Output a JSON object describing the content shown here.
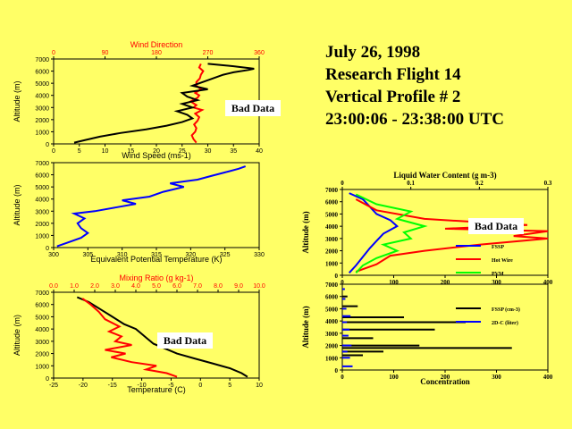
{
  "info": {
    "date": "July 26, 1998",
    "flight": "Research Flight 14",
    "profile": "Vertical Profile # 2",
    "time": "23:00:06 - 23:38:00 UTC"
  },
  "colors": {
    "red": "#ff0000",
    "blue": "#0000ff",
    "black": "#000000",
    "green": "#00ff00",
    "background": "#ffff66"
  },
  "chart_data": [
    {
      "id": "wind",
      "type": "line",
      "ylabel": "Altitude (m)",
      "ylim": [
        0,
        7000
      ],
      "yticks": [
        "0",
        "1000",
        "2000",
        "3000",
        "4000",
        "5000",
        "6000",
        "7000"
      ],
      "top_axis": {
        "label": "Wind Direction",
        "range": [
          0,
          360
        ],
        "ticks": [
          "0",
          "90",
          "180",
          "270",
          "360"
        ]
      },
      "bottom_axis": {
        "label": "Wind Speed (ms-1)",
        "range": [
          0,
          40
        ],
        "ticks": [
          "0",
          "5",
          "10",
          "15",
          "20",
          "25",
          "30",
          "35",
          "40"
        ]
      },
      "annotation": "Bad Data",
      "series": [
        {
          "name": "Wind Direction",
          "axis": "top",
          "color": "#ff0000",
          "x": [
            250,
            245,
            242,
            248,
            250,
            246,
            252,
            255,
            248,
            260,
            245,
            250,
            240,
            252,
            255,
            248,
            258,
            250,
            250,
            256,
            258,
            262,
            255,
            258
          ],
          "y": [
            100,
            400,
            700,
            1000,
            1300,
            1600,
            1900,
            2200,
            2500,
            2800,
            3000,
            3200,
            3500,
            3800,
            4000,
            4200,
            4500,
            4800,
            5100,
            5400,
            5700,
            6000,
            6300,
            6600
          ]
        },
        {
          "name": "Wind Speed",
          "axis": "bottom",
          "color": "#000000",
          "x": [
            4,
            6,
            9,
            13,
            18,
            22,
            25,
            27,
            26,
            24,
            27,
            25,
            28,
            26,
            25,
            30,
            27,
            29,
            31,
            33,
            35,
            38,
            39,
            35,
            30
          ],
          "y": [
            100,
            300,
            600,
            900,
            1200,
            1500,
            1800,
            2100,
            2400,
            2700,
            3000,
            3300,
            3600,
            3900,
            4200,
            4500,
            4800,
            5100,
            5400,
            5700,
            5900,
            6100,
            6200,
            6400,
            6600
          ]
        }
      ]
    },
    {
      "id": "theta_e",
      "type": "line",
      "ylabel": "Altitude (m)",
      "ylim": [
        0,
        7000
      ],
      "yticks": [
        "0",
        "1000",
        "2000",
        "3000",
        "4000",
        "5000",
        "6000",
        "7000"
      ],
      "bottom_axis": {
        "label": "Equivalent Potential Temperature (K)",
        "range": [
          300,
          330
        ],
        "ticks": [
          "300",
          "305",
          "310",
          "315",
          "320",
          "325",
          "330"
        ]
      },
      "series": [
        {
          "name": "Equivalent Potential Temperature",
          "axis": "bottom",
          "color": "#0000ff",
          "x": [
            300.5,
            302,
            304,
            305,
            304,
            303.5,
            304.5,
            303,
            306,
            309,
            312,
            310,
            314,
            316,
            319,
            317,
            321,
            323,
            325,
            327,
            328
          ],
          "y": [
            100,
            400,
            800,
            1200,
            1600,
            2000,
            2400,
            2800,
            3000,
            3300,
            3600,
            3900,
            4200,
            4600,
            5000,
            5300,
            5600,
            5900,
            6200,
            6500,
            6700
          ]
        }
      ]
    },
    {
      "id": "temp_mix",
      "type": "line",
      "ylabel": "Altitude (m)",
      "ylim": [
        0,
        7000
      ],
      "yticks": [
        "0",
        "1000",
        "2000",
        "3000",
        "4000",
        "5000",
        "6000",
        "7000"
      ],
      "top_axis": {
        "label": "Mixing Ratio (g kg-1)",
        "range": [
          0,
          10
        ],
        "ticks": [
          "0.0",
          "1.0",
          "2.0",
          "3.0",
          "4.0",
          "5.0",
          "6.0",
          "7.0",
          "8.0",
          "9.0",
          "10.0"
        ]
      },
      "bottom_axis": {
        "label": "Temperature (C)",
        "range": [
          -25,
          10
        ],
        "ticks": [
          "-25",
          "-20",
          "-15",
          "-10",
          "-5",
          "0",
          "5",
          "10"
        ]
      },
      "annotation": "Bad Data",
      "series": [
        {
          "name": "Temperature",
          "axis": "bottom",
          "color": "#000000",
          "x": [
            8,
            7,
            5,
            2,
            -1,
            -4,
            -6,
            -8,
            -9,
            -10,
            -11,
            -13,
            -15,
            -17,
            -19,
            -21
          ],
          "y": [
            100,
            400,
            800,
            1200,
            1600,
            2000,
            2400,
            2800,
            3200,
            3600,
            4000,
            4400,
            5000,
            5600,
            6200,
            6600
          ]
        },
        {
          "name": "Mixing Ratio",
          "axis": "top",
          "color": "#ff0000",
          "x": [
            6,
            5.5,
            4.5,
            5,
            3.8,
            2.8,
            3.5,
            2.5,
            3.8,
            3,
            3.3,
            2.7,
            3.2,
            2.5,
            2.2,
            1.8,
            1.4
          ],
          "y": [
            100,
            400,
            700,
            1000,
            1300,
            1700,
            2000,
            2300,
            2700,
            3000,
            3400,
            3800,
            4200,
            4800,
            5400,
            6000,
            6500
          ]
        }
      ]
    },
    {
      "id": "lwc",
      "type": "line",
      "ylabel": "Altitude (m)",
      "ylim": [
        0,
        7000
      ],
      "yticks": [
        "0",
        "1000",
        "2000",
        "3000",
        "4000",
        "5000",
        "6000",
        "7000"
      ],
      "top_axis": {
        "label": "Liquid Water Content (g m-3)",
        "range": [
          0,
          0.3
        ],
        "ticks": [
          "0",
          "0.1",
          "0.2",
          "0.3"
        ]
      },
      "bottom_axis": {
        "label": "",
        "range": [
          0,
          400
        ],
        "ticks": [
          "0",
          "100",
          "200",
          "300",
          "400"
        ]
      },
      "annotation": "Bad Data",
      "legend": [
        "FSSP",
        "Hot Wire",
        "PVM"
      ],
      "series": [
        {
          "name": "FSSP",
          "axis": "top",
          "color": "#0000ff",
          "x": [
            0.01,
            0.02,
            0.03,
            0.04,
            0.05,
            0.06,
            0.08,
            0.07,
            0.05,
            0.04,
            0.03,
            0.01
          ],
          "y": [
            200,
            800,
            1500,
            2200,
            2800,
            3400,
            4000,
            4500,
            5000,
            5600,
            6200,
            6700
          ]
        },
        {
          "name": "Hot Wire",
          "axis": "top",
          "color": "#ff0000",
          "x": [
            0.02,
            0.05,
            0.07,
            0.12,
            0.2,
            0.3,
            0.25,
            0.3,
            0.15,
            0.27,
            0.12,
            0.05,
            0.02
          ],
          "y": [
            300,
            900,
            1600,
            2000,
            2500,
            3000,
            3200,
            3600,
            3800,
            4100,
            4600,
            5300,
            6200
          ]
        },
        {
          "name": "PVM",
          "axis": "top",
          "color": "#00ff00",
          "x": [
            0.02,
            0.03,
            0.05,
            0.08,
            0.06,
            0.1,
            0.09,
            0.12,
            0.08,
            0.1,
            0.05,
            0.02
          ],
          "y": [
            200,
            800,
            1400,
            2000,
            2500,
            3000,
            3500,
            4000,
            4600,
            5200,
            5800,
            6600
          ]
        }
      ]
    },
    {
      "id": "concentration",
      "type": "bar",
      "ylabel": "Altitude (m)",
      "ylim": [
        0,
        7000
      ],
      "yticks": [
        "0",
        "1000",
        "2000",
        "3000",
        "4000",
        "5000",
        "6000",
        "7000"
      ],
      "bottom_axis": {
        "label": "Concentration",
        "range": [
          0,
          400
        ],
        "ticks": [
          "0",
          "100",
          "200",
          "300",
          "400"
        ]
      },
      "legend": [
        "FSSP (cm-3)",
        "2D-C (liter)"
      ],
      "series": [
        {
          "name": "FSSP (cm-3)",
          "color": "#000000",
          "x": [
            40,
            80,
            330,
            150,
            60,
            180,
            240,
            120,
            30,
            10
          ],
          "y": [
            1200,
            1500,
            1800,
            2000,
            2600,
            3300,
            3900,
            4300,
            5200,
            6000
          ]
        },
        {
          "name": "2D-C (liter)",
          "color": "#0000ff",
          "x": [
            20,
            15,
            10,
            18,
            12,
            14,
            9,
            16,
            8,
            6,
            5
          ],
          "y": [
            300,
            1000,
            1500,
            2000,
            2800,
            3300,
            3900,
            4400,
            5000,
            5800,
            6600
          ]
        }
      ]
    }
  ]
}
